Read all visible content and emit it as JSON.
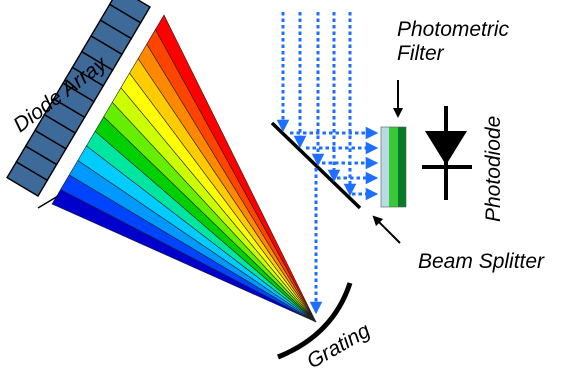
{
  "labels": {
    "diode_array": "Diode Array",
    "photometric_filter_line1": "Photometric",
    "photometric_filter_line2": "Filter",
    "photodiode": "Photodiode",
    "beam_splitter": "Beam Splitter",
    "grating": "Grating"
  },
  "colors": {
    "spectrum": [
      "#0000cc",
      "#0044ff",
      "#0099ff",
      "#00ccff",
      "#00e5a0",
      "#00d000",
      "#66ee00",
      "#ccff00",
      "#ffff00",
      "#ffcc00",
      "#ff8800",
      "#ff4400",
      "#ff0000"
    ],
    "diode_cell": "#3d6a99",
    "light_path": "#1e6fff",
    "filter_stripes": [
      "#b8dbe6",
      "#38c838",
      "#0a7a2a"
    ]
  },
  "diode_array": {
    "cell_count": 12
  }
}
